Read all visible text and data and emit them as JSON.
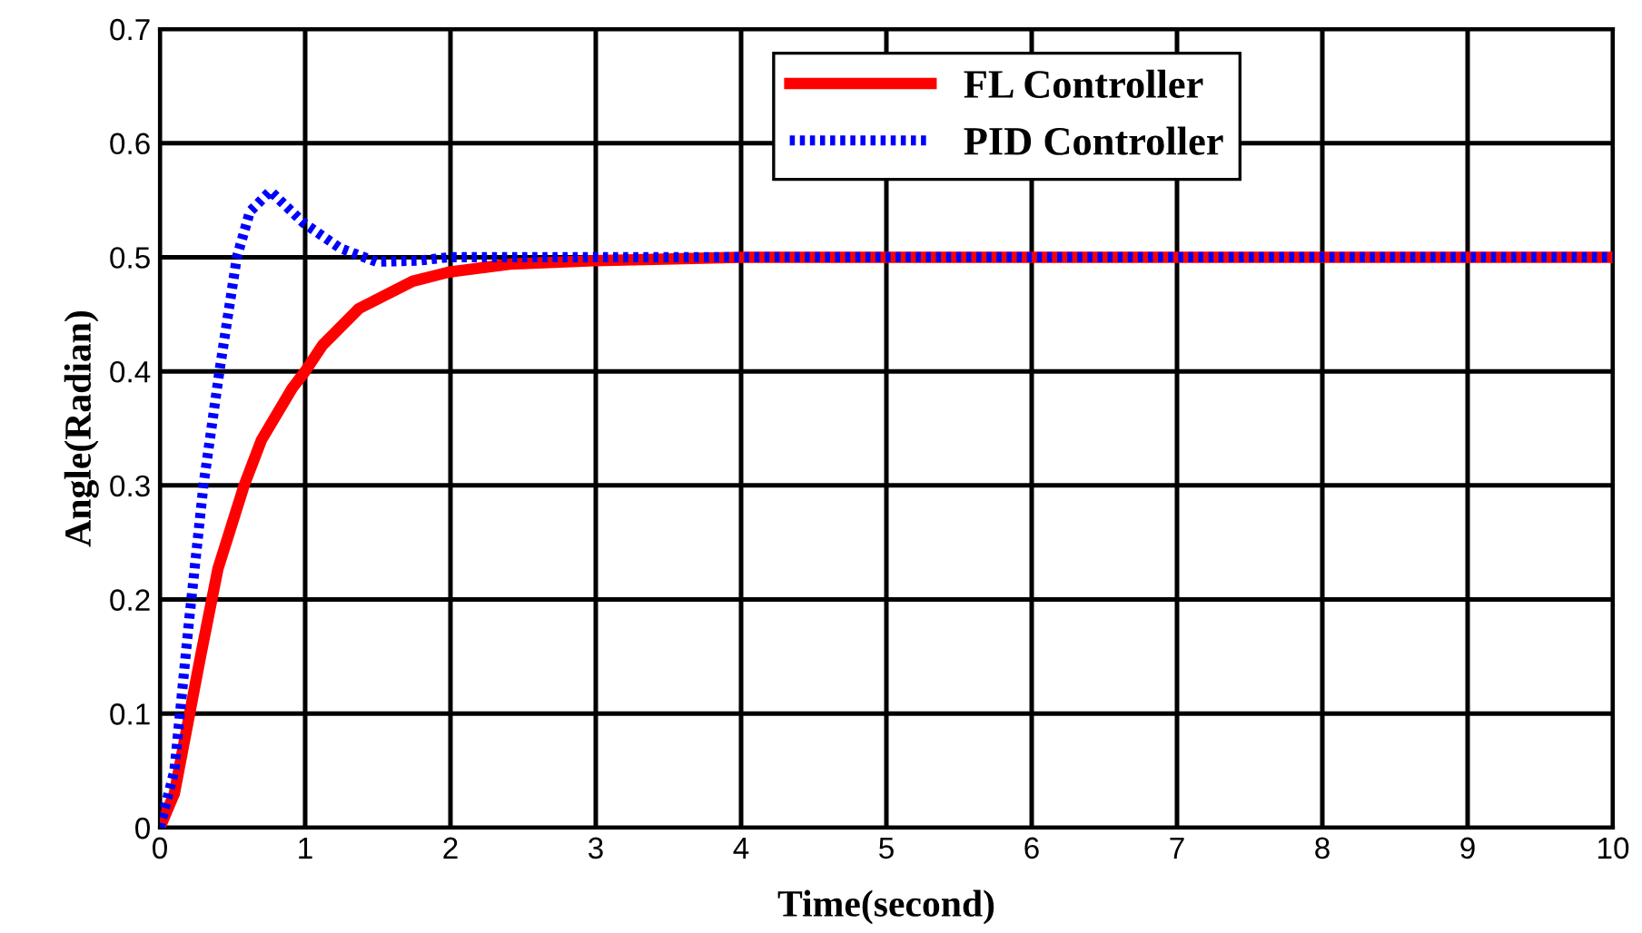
{
  "chart_data": {
    "type": "line",
    "xlabel": "Time(second)",
    "ylabel": "Angle(Radian)",
    "xlim": [
      0,
      10
    ],
    "ylim": [
      0,
      0.7
    ],
    "xticks": [
      0,
      1,
      2,
      3,
      4,
      5,
      6,
      7,
      8,
      9,
      10
    ],
    "yticks": [
      0,
      0.1,
      0.2,
      0.3,
      0.4,
      0.5,
      0.6,
      0.7
    ],
    "grid": true,
    "legend": "top right",
    "series": [
      {
        "name": "FL Controller",
        "color": "#ff0000",
        "line_style": "solid",
        "x": [
          0,
          0.1,
          0.28,
          0.4,
          0.58,
          0.7,
          0.91,
          1.0,
          1.12,
          1.37,
          1.74,
          1.99,
          2.41,
          2.99,
          4,
          10
        ],
        "values": [
          0,
          0.03,
          0.15,
          0.227,
          0.3,
          0.34,
          0.385,
          0.4,
          0.423,
          0.455,
          0.479,
          0.487,
          0.494,
          0.497,
          0.5,
          0.5
        ]
      },
      {
        "name": "PID Controller",
        "color": "#0000ff",
        "line_style": "dotted",
        "x": [
          0,
          0.1,
          0.2,
          0.3,
          0.41,
          0.53,
          0.62,
          0.76,
          0.99,
          1.24,
          1.49,
          1.78,
          1.99,
          10
        ],
        "values": [
          0,
          0.05,
          0.18,
          0.3,
          0.4,
          0.5,
          0.54,
          0.558,
          0.53,
          0.508,
          0.496,
          0.497,
          0.5,
          0.5
        ]
      }
    ]
  }
}
